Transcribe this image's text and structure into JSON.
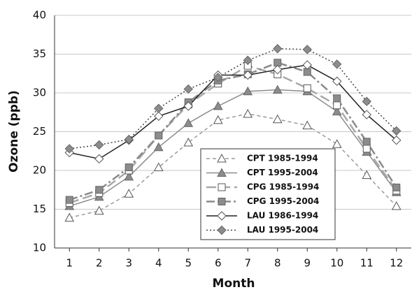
{
  "chart_data": {
    "type": "line",
    "x_label": "Month",
    "y_label": "Ozone (ppb)",
    "x": [
      1,
      2,
      3,
      4,
      5,
      6,
      7,
      8,
      9,
      10,
      11,
      12
    ],
    "xlim": [
      0.5,
      12.5
    ],
    "xticks": [
      1,
      2,
      3,
      4,
      5,
      6,
      7,
      8,
      9,
      10,
      11,
      12
    ],
    "ylim": [
      10,
      40
    ],
    "yticks": [
      10,
      15,
      20,
      25,
      30,
      35,
      40
    ],
    "grid": true,
    "legend_position": "lower center",
    "series": [
      {
        "name": "CPT 1985-1994",
        "color": "#9a9a9a",
        "dash": "dashed",
        "marker": "triangle",
        "filled": false,
        "values": [
          13.9,
          14.8,
          17.0,
          20.4,
          23.6,
          26.5,
          27.3,
          26.6,
          25.8,
          23.4,
          19.4,
          15.4
        ]
      },
      {
        "name": "CPT 1995-2004",
        "color": "#8c8c8c",
        "dash": "solid",
        "marker": "triangle",
        "filled": true,
        "values": [
          15.4,
          16.6,
          19.2,
          23.0,
          26.1,
          28.3,
          30.2,
          30.4,
          30.2,
          27.6,
          22.4,
          17.2
        ]
      },
      {
        "name": "CPG 1985-1994",
        "color": "#a8a8a8",
        "dash": "longdash",
        "marker": "square",
        "filled": false,
        "values": [
          15.8,
          17.1,
          20.0,
          24.5,
          28.5,
          31.2,
          33.5,
          32.4,
          30.6,
          28.4,
          22.8,
          17.4
        ]
      },
      {
        "name": "CPG 1995-2004",
        "color": "#8a8a8a",
        "dash": "dashdot",
        "marker": "square",
        "filled": true,
        "values": [
          16.2,
          17.5,
          20.4,
          24.5,
          28.8,
          31.6,
          32.4,
          33.9,
          32.7,
          29.3,
          23.7,
          17.8
        ]
      },
      {
        "name": "LAU 1986-1994",
        "color": "#222222",
        "dash": "solid",
        "marker": "diamond",
        "filled": false,
        "values": [
          22.3,
          21.5,
          23.9,
          27.0,
          28.3,
          32.3,
          32.3,
          33.0,
          33.6,
          31.5,
          27.2,
          23.9
        ]
      },
      {
        "name": "LAU 1995-2004",
        "color": "#444444",
        "dash": "dotted",
        "marker": "diamond",
        "filled": true,
        "values": [
          22.8,
          23.3,
          24.0,
          28.0,
          30.5,
          32.0,
          34.2,
          35.7,
          35.6,
          33.7,
          28.9,
          25.1
        ]
      }
    ]
  }
}
